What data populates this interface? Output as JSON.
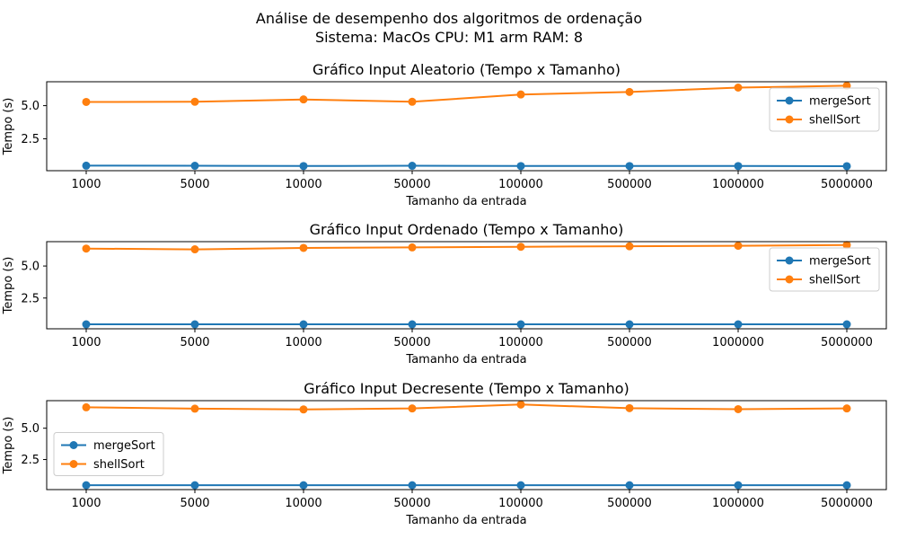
{
  "figure": {
    "suptitle_line1": "Análise de desempenho dos algoritmos de ordenação",
    "suptitle_line2": "Sistema: MacOs CPU: M1 arm RAM: 8"
  },
  "chart_data": [
    {
      "type": "line",
      "title": "Gráfico Input Aleatorio (Tempo x Tamanho)",
      "xlabel": "Tamanho da entrada",
      "ylabel": "Tempo (s)",
      "categories": [
        "1000",
        "5000",
        "10000",
        "50000",
        "100000",
        "500000",
        "1000000",
        "5000000"
      ],
      "yticks": [
        "2.5",
        "5.0"
      ],
      "ylim": [
        0.1,
        6.8
      ],
      "legend_position": "upper-right",
      "series": [
        {
          "name": "mergeSort",
          "color": "#1f77b4",
          "values": [
            0.48,
            0.47,
            0.45,
            0.47,
            0.45,
            0.45,
            0.45,
            0.44
          ]
        },
        {
          "name": "shellSort",
          "color": "#ff7f0e",
          "values": [
            5.28,
            5.29,
            5.47,
            5.29,
            5.84,
            6.03,
            6.36,
            6.5
          ]
        }
      ]
    },
    {
      "type": "line",
      "title": "Gráfico Input Ordenado (Tempo x Tamanho)",
      "xlabel": "Tamanho da entrada",
      "ylabel": "Tempo (s)",
      "categories": [
        "1000",
        "5000",
        "10000",
        "50000",
        "100000",
        "500000",
        "1000000",
        "5000000"
      ],
      "yticks": [
        "2.5",
        "5.0"
      ],
      "ylim": [
        0.1,
        6.9
      ],
      "legend_position": "upper-right",
      "series": [
        {
          "name": "mergeSort",
          "color": "#1f77b4",
          "values": [
            0.45,
            0.45,
            0.45,
            0.45,
            0.45,
            0.45,
            0.45,
            0.45
          ]
        },
        {
          "name": "shellSort",
          "color": "#ff7f0e",
          "values": [
            6.36,
            6.3,
            6.41,
            6.45,
            6.5,
            6.54,
            6.58,
            6.64
          ]
        }
      ]
    },
    {
      "type": "line",
      "title": "Gráfico Input Decresente (Tempo x Tamanho)",
      "xlabel": "Tamanho da entrada",
      "ylabel": "Tempo (s)",
      "categories": [
        "1000",
        "5000",
        "10000",
        "50000",
        "100000",
        "500000",
        "1000000",
        "5000000"
      ],
      "yticks": [
        "2.5",
        "5.0"
      ],
      "ylim": [
        0.1,
        7.2
      ],
      "legend_position": "center-left",
      "series": [
        {
          "name": "mergeSort",
          "color": "#1f77b4",
          "values": [
            0.45,
            0.45,
            0.45,
            0.45,
            0.45,
            0.45,
            0.45,
            0.45
          ]
        },
        {
          "name": "shellSort",
          "color": "#ff7f0e",
          "values": [
            6.67,
            6.56,
            6.5,
            6.58,
            6.89,
            6.6,
            6.52,
            6.58
          ]
        }
      ]
    }
  ]
}
